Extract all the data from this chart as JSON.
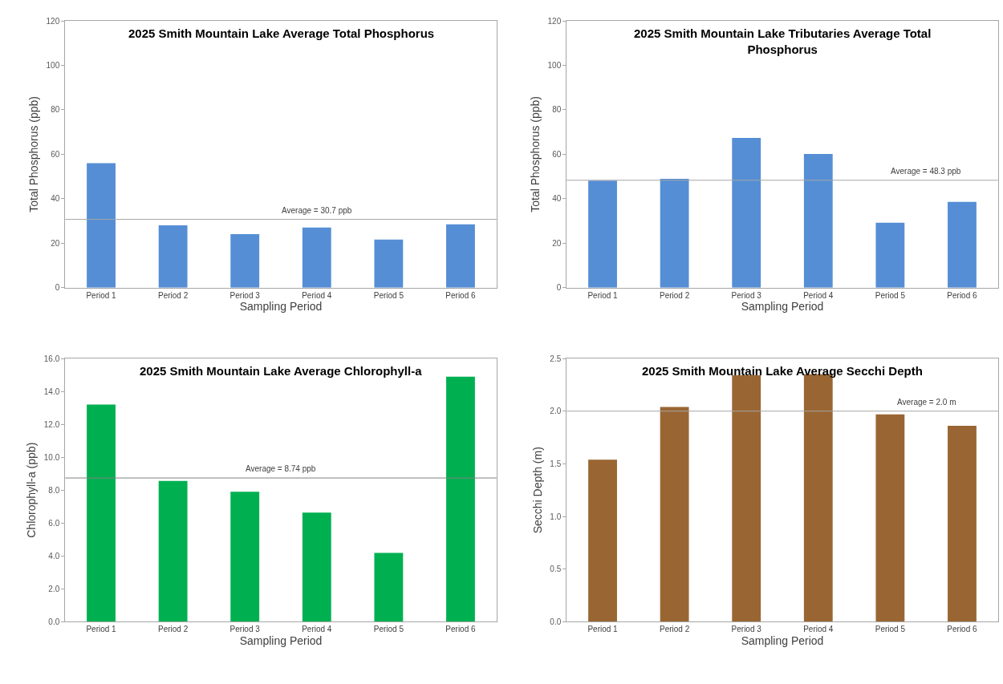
{
  "chart_data": [
    {
      "type": "bar",
      "title": "2025 Smith Mountain Lake Average Total Phosphorus",
      "xlabel": "Sampling Period",
      "ylabel": "Total Phosphorus (ppb)",
      "categories": [
        "Period 1",
        "Period 2",
        "Period 3",
        "Period 4",
        "Period 5",
        "Period 6"
      ],
      "values": [
        56,
        28,
        24,
        27,
        21.6,
        28.5
      ],
      "color": "#558ed5",
      "ylim": [
        0,
        120
      ],
      "yticks": [
        0,
        20,
        40,
        60,
        80,
        100,
        120
      ],
      "ref_lines": [
        {
          "axis": "y",
          "value": 30.7,
          "label": "Average = 30.7 ppb",
          "color": "#a6a6a6"
        }
      ]
    },
    {
      "type": "bar",
      "title": "2025 Smith Mountain Lake Tributaries Average Total Phosphorus",
      "xlabel": "Sampling Period",
      "ylabel": "Total Phosphorus (ppb)",
      "categories": [
        "Period 1",
        "Period 2",
        "Period 3",
        "Period 4",
        "Period 5",
        "Period 6"
      ],
      "values": [
        48.1,
        48.9,
        67.3,
        60.1,
        29.2,
        38.6
      ],
      "color": "#558ed5",
      "ylim": [
        0,
        120
      ],
      "yticks": [
        0,
        20,
        40,
        60,
        80,
        100,
        120
      ],
      "ref_lines": [
        {
          "axis": "y",
          "value": 48.3,
          "label": "Average = 48.3 ppb",
          "color": "#a6a6a6"
        }
      ]
    },
    {
      "type": "bar",
      "title": "2025 Smith Mountain Lake Average Chlorophyll-a",
      "xlabel": "Sampling Period",
      "ylabel": "Chlorophyll-a (ppb)",
      "categories": [
        "Period 1",
        "Period 2",
        "Period 3",
        "Period 4",
        "Period 5",
        "Period 6"
      ],
      "values": [
        13.2,
        8.56,
        7.9,
        6.64,
        4.19,
        14.89
      ],
      "color": "#00b050",
      "ylim": [
        0,
        16
      ],
      "yticks": [
        {
          "value": 0,
          "label": "0.0"
        },
        {
          "value": 2,
          "label": "2.0"
        },
        {
          "value": 4,
          "label": "4.0"
        },
        {
          "value": 6,
          "label": "6.0"
        },
        {
          "value": 8,
          "label": "8.0"
        },
        {
          "value": 10,
          "label": "10.0"
        },
        {
          "value": 12,
          "label": "12.0"
        },
        {
          "value": 14,
          "label": "14.0"
        },
        {
          "value": 16,
          "label": "16.0"
        }
      ],
      "ref_lines": [
        {
          "axis": "y",
          "value": 8.74,
          "label": "Average = 8.74 ppb",
          "color": "#808080"
        }
      ]
    },
    {
      "type": "bar",
      "title": "2025 Smith Mountain Lake Average Secchi Depth",
      "xlabel": "Sampling Period",
      "ylabel": "Secchi Depth (m)",
      "categories": [
        "Period 1",
        "Period 2",
        "Period 3",
        "Period 4",
        "Period 5",
        "Period 6"
      ],
      "values": [
        1.54,
        2.04,
        2.34,
        2.35,
        1.97,
        1.86
      ],
      "color": "#996633",
      "ylim": [
        0,
        2.5
      ],
      "yticks": [
        {
          "value": 0,
          "label": "0.0"
        },
        {
          "value": 0.5,
          "label": "0.5"
        },
        {
          "value": 1,
          "label": "1.0"
        },
        {
          "value": 1.5,
          "label": "1.5"
        },
        {
          "value": 2,
          "label": "2.0"
        },
        {
          "value": 2.5,
          "label": "2.5"
        }
      ],
      "ref_lines": [
        {
          "axis": "y",
          "value": 2.0,
          "label": "Average = 2.0 m",
          "color": "#a6a6a6"
        }
      ]
    }
  ]
}
